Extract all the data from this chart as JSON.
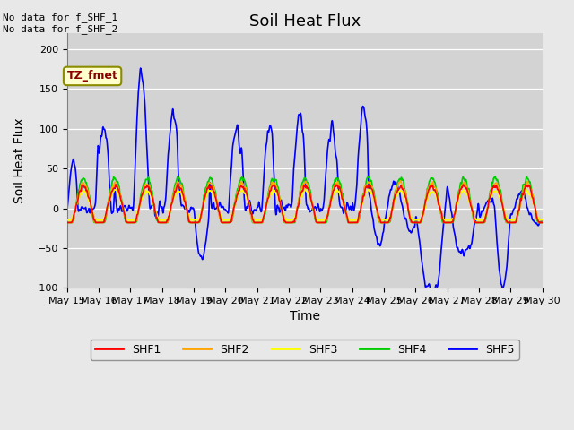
{
  "title": "Soil Heat Flux",
  "ylabel": "Soil Heat Flux",
  "xlabel": "Time",
  "ylim": [
    -100,
    220
  ],
  "yticks": [
    -100,
    -50,
    0,
    50,
    100,
    150,
    200
  ],
  "legend_labels": [
    "SHF1",
    "SHF2",
    "SHF3",
    "SHF4",
    "SHF5"
  ],
  "legend_colors": [
    "#ff0000",
    "#ffa500",
    "#ffff00",
    "#00cc00",
    "#0000ff"
  ],
  "annotation_text": "No data for f_SHF_1\nNo data for f_SHF_2",
  "tooltip_text": "TZ_fmet",
  "tooltip_bgcolor": "#ffffcc",
  "tooltip_edgecolor": "#8B8B00",
  "fig_facecolor": "#e8e8e8",
  "plot_bg_color": "#d3d3d3",
  "title_fontsize": 13,
  "axis_label_fontsize": 10,
  "tick_label_fontsize": 8,
  "x_start_day": 15,
  "x_end_day": 30,
  "xtick_days": [
    15,
    16,
    17,
    18,
    19,
    20,
    21,
    22,
    23,
    24,
    25,
    26,
    27,
    28,
    29,
    30
  ],
  "xtick_labels": [
    "May 15",
    "May 16",
    "May 17",
    "May 18",
    "May 19",
    "May 20",
    "May 21",
    "May 22",
    "May 23",
    "May 24",
    "May 25",
    "May 26",
    "May 27",
    "May 28",
    "May 29",
    "May 30"
  ]
}
